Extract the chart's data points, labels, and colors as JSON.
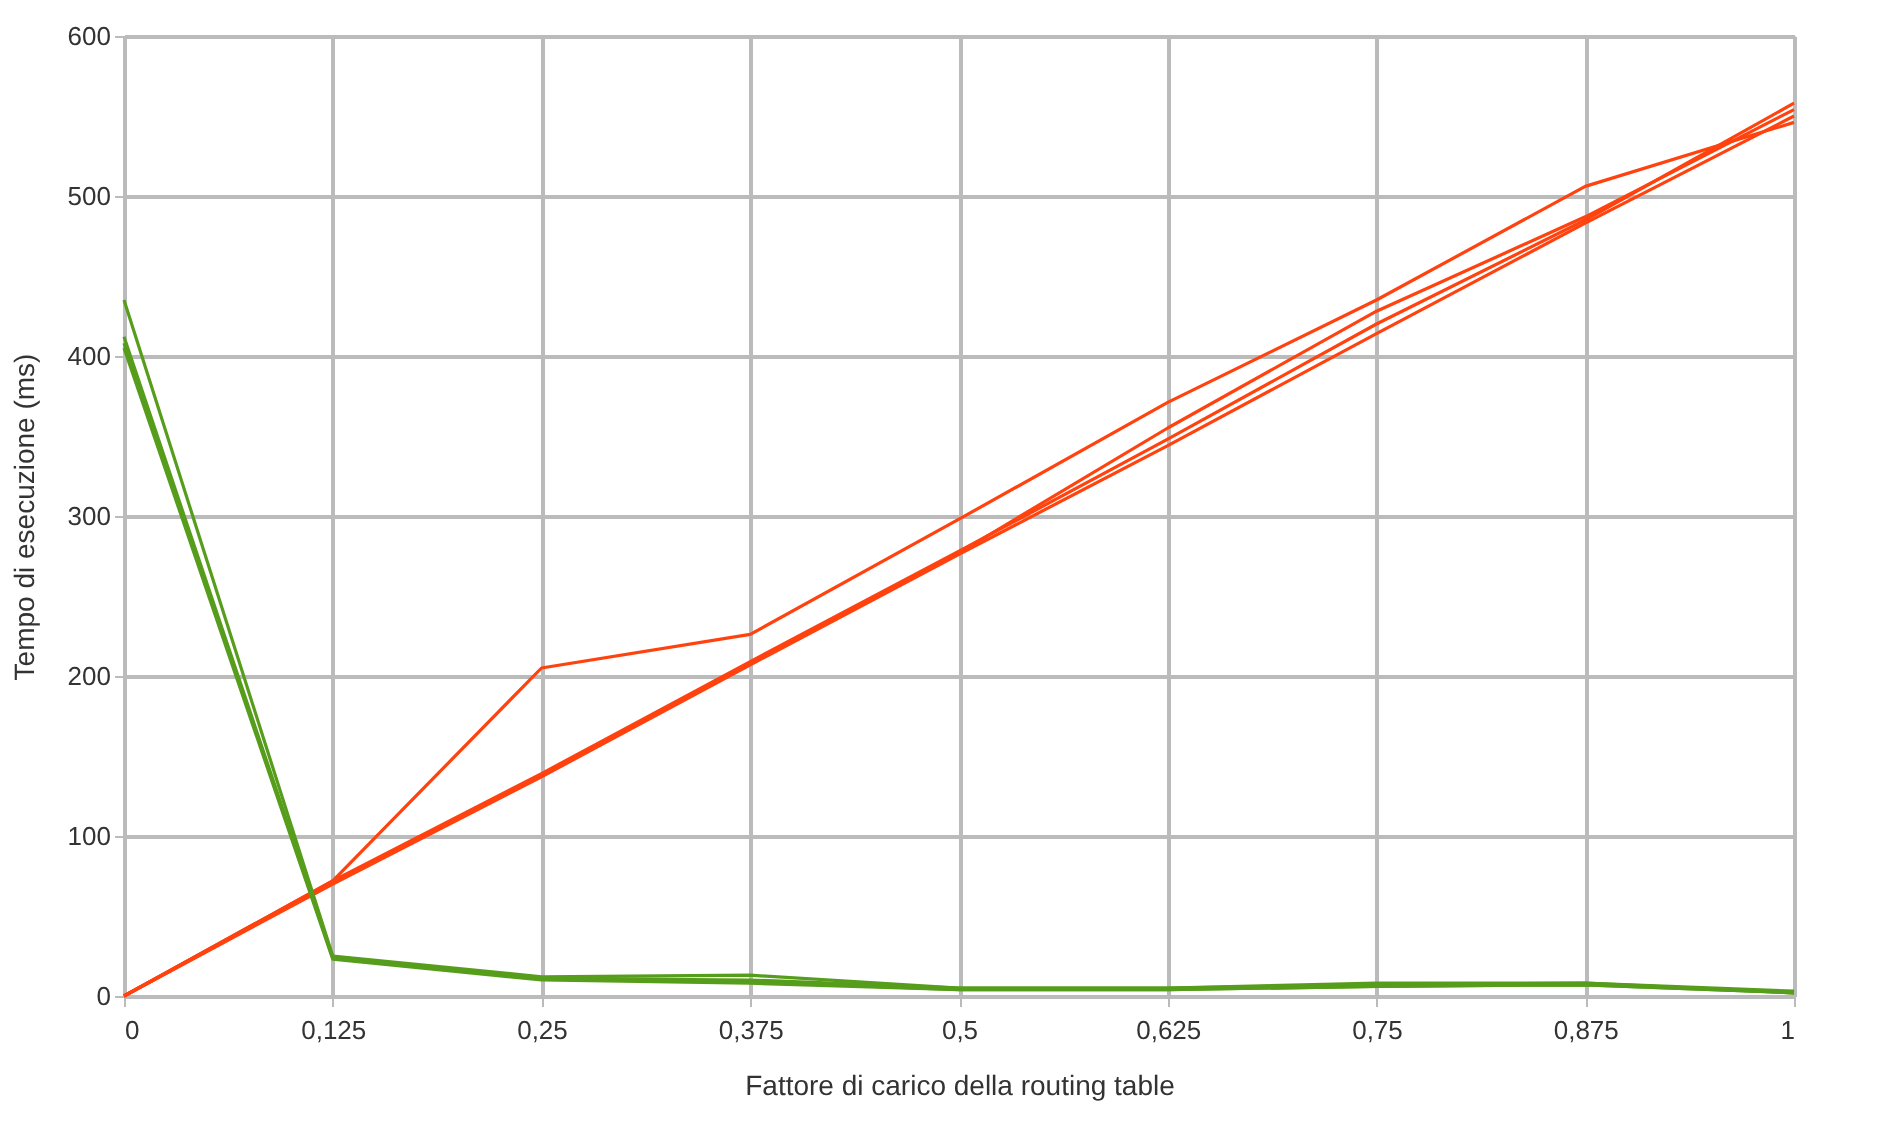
{
  "chart_data": {
    "type": "line",
    "xlabel": "Fattore di carico della routing table",
    "ylabel": "Tempo di esecuzione (ms)",
    "x": [
      0,
      0.125,
      0.25,
      0.375,
      0.5,
      0.625,
      0.75,
      0.875,
      1
    ],
    "xlim": [
      0,
      1
    ],
    "xticks": [
      0,
      {
        "value": 0.125,
        "label": "0,125"
      },
      {
        "value": 0.25,
        "label": "0,25"
      },
      {
        "value": 0.375,
        "label": "0,375"
      },
      {
        "value": 0.5,
        "label": "0,5"
      },
      {
        "value": 0.625,
        "label": "0,625"
      },
      {
        "value": 0.75,
        "label": "0,75"
      },
      {
        "value": 0.875,
        "label": "0,875"
      },
      1
    ],
    "ylim": [
      0,
      600
    ],
    "yticks": [
      0,
      100,
      200,
      300,
      400,
      500,
      600
    ],
    "grid": true,
    "line_style": "solid",
    "marker": "none",
    "series": [
      {
        "color": "#ff420e",
        "values": [
          0,
          72,
          205,
          226,
          298,
          371,
          435,
          506,
          546
        ]
      },
      {
        "color": "#ff420e",
        "values": [
          0,
          72,
          139,
          209,
          278,
          348,
          420,
          485,
          558
        ]
      },
      {
        "color": "#ff420e",
        "values": [
          0,
          71,
          138,
          208,
          277,
          355,
          428,
          487,
          554
        ]
      },
      {
        "color": "#ff420e",
        "values": [
          0,
          70,
          137,
          207,
          276,
          344,
          414,
          483,
          550
        ]
      },
      {
        "color": "#579d1c",
        "values": [
          435,
          25,
          12,
          13,
          5,
          5,
          8,
          8,
          3
        ]
      },
      {
        "color": "#579d1c",
        "values": [
          412,
          24,
          11,
          10,
          5,
          5,
          7,
          8,
          2
        ]
      },
      {
        "color": "#579d1c",
        "values": [
          408,
          24,
          11,
          9,
          4,
          4,
          6,
          7,
          2
        ]
      },
      {
        "color": "#579d1c",
        "values": [
          405,
          23,
          10,
          8,
          4,
          4,
          6,
          7,
          2
        ]
      }
    ]
  }
}
